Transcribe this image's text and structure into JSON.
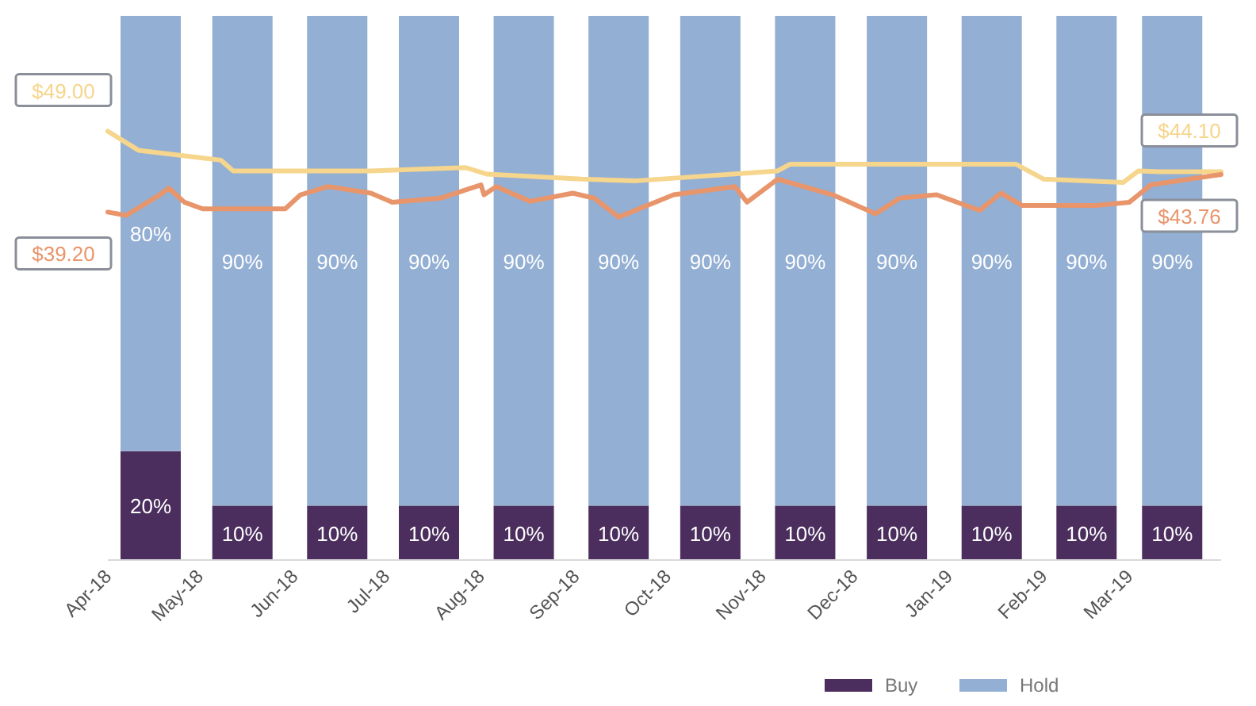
{
  "chart_data": {
    "type": "bar",
    "stacked": true,
    "x": [
      "2018-04-15",
      "2018-05-15",
      "2018-06-15",
      "2018-07-15",
      "2018-08-15",
      "2018-09-15",
      "2018-10-15",
      "2018-11-15",
      "2018-12-15",
      "2019-01-15",
      "2019-02-15",
      "2019-03-15"
    ],
    "xlim": [
      "2018-04-01",
      "2019-03-31"
    ],
    "xticks": [
      {
        "value": "2018-04-01",
        "label": "Apr-18"
      },
      {
        "value": "2018-05-01",
        "label": "May-18"
      },
      {
        "value": "2018-06-01",
        "label": "Jun-18"
      },
      {
        "value": "2018-07-01",
        "label": "Jul-18"
      },
      {
        "value": "2018-08-01",
        "label": "Aug-18"
      },
      {
        "value": "2018-09-01",
        "label": "Sep-18"
      },
      {
        "value": "2018-10-01",
        "label": "Oct-18"
      },
      {
        "value": "2018-11-01",
        "label": "Nov-18"
      },
      {
        "value": "2018-12-01",
        "label": "Dec-18"
      },
      {
        "value": "2019-01-01",
        "label": "Jan-19"
      },
      {
        "value": "2019-02-01",
        "label": "Feb-19"
      },
      {
        "value": "2019-03-01",
        "label": "Mar-19"
      }
    ],
    "ylim": [
      0,
      100
    ],
    "y2lim": [
      -3,
      63
    ],
    "tick_labels": "x",
    "legend": "bottom right",
    "series": [
      {
        "name": "Buy",
        "color": "#4b2e5e",
        "values": [
          20,
          10,
          10,
          10,
          10,
          10,
          10,
          10,
          10,
          10,
          10,
          10
        ],
        "value_labels": [
          "20%",
          "10%",
          "10%",
          "10%",
          "10%",
          "10%",
          "10%",
          "10%",
          "10%",
          "10%",
          "10%",
          "10%"
        ]
      },
      {
        "name": "Hold",
        "color": "#93afd3",
        "values": [
          80,
          90,
          90,
          90,
          90,
          90,
          90,
          90,
          90,
          90,
          90,
          90
        ],
        "value_labels": [
          "80%",
          "90%",
          "90%",
          "90%",
          "90%",
          "90%",
          "90%",
          "90%",
          "90%",
          "90%",
          "90%",
          "90%"
        ]
      },
      {
        "type": "line",
        "axis": "y2",
        "color": "#f6d58c",
        "x": [
          "2018-04-01",
          "2018-04-11",
          "2018-05-08",
          "2018-05-12",
          "2018-06-26",
          "2018-07-27",
          "2018-08-03",
          "2018-09-03",
          "2018-09-21",
          "2018-11-06",
          "2018-11-10",
          "2019-01-23",
          "2019-02-01",
          "2019-02-27",
          "2019-03-04",
          "2019-03-11",
          "2019-03-31"
        ],
        "values": [
          49.0,
          46.7,
          45.5,
          44.2,
          44.2,
          44.6,
          43.8,
          43.2,
          43.0,
          44.2,
          45.0,
          45.0,
          43.2,
          42.8,
          44.2,
          44.1,
          44.1
        ],
        "value_labels": [
          "$49.00",
          null,
          null,
          null,
          null,
          null,
          null,
          null,
          null,
          null,
          null,
          null,
          null,
          null,
          null,
          null,
          "$44.10"
        ]
      },
      {
        "type": "line",
        "axis": "y2",
        "color": "#e8956b",
        "x": [
          "2018-04-01",
          "2018-04-07",
          "2018-04-18",
          "2018-04-21",
          "2018-04-26",
          "2018-05-02",
          "2018-05-29",
          "2018-06-03",
          "2018-06-12",
          "2018-06-26",
          "2018-07-03",
          "2018-07-19",
          "2018-07-27",
          "2018-08-01",
          "2018-08-02",
          "2018-08-06",
          "2018-08-17",
          "2018-08-31",
          "2018-09-07",
          "2018-09-15",
          "2018-10-03",
          "2018-10-23",
          "2018-10-27",
          "2018-11-06",
          "2018-11-24",
          "2018-12-08",
          "2018-12-16",
          "2018-12-28",
          "2019-01-11",
          "2019-01-18",
          "2019-01-25",
          "2019-02-18",
          "2019-03-01",
          "2019-03-08",
          "2019-03-31"
        ],
        "values": [
          39.2,
          38.8,
          41.3,
          42.1,
          40.4,
          39.6,
          39.6,
          41.3,
          42.3,
          41.5,
          40.4,
          40.9,
          41.9,
          42.5,
          41.3,
          42.3,
          40.5,
          41.5,
          40.9,
          38.6,
          41.3,
          42.3,
          40.4,
          43.2,
          41.3,
          39.0,
          40.9,
          41.3,
          39.4,
          41.5,
          40.0,
          40.0,
          40.4,
          42.5,
          43.76
        ],
        "value_labels": [
          "$39.20",
          null,
          null,
          null,
          null,
          null,
          null,
          null,
          null,
          null,
          null,
          null,
          null,
          null,
          null,
          null,
          null,
          null,
          null,
          null,
          null,
          null,
          null,
          null,
          null,
          null,
          null,
          null,
          null,
          null,
          null,
          null,
          null,
          null,
          "$43.76"
        ]
      }
    ]
  }
}
